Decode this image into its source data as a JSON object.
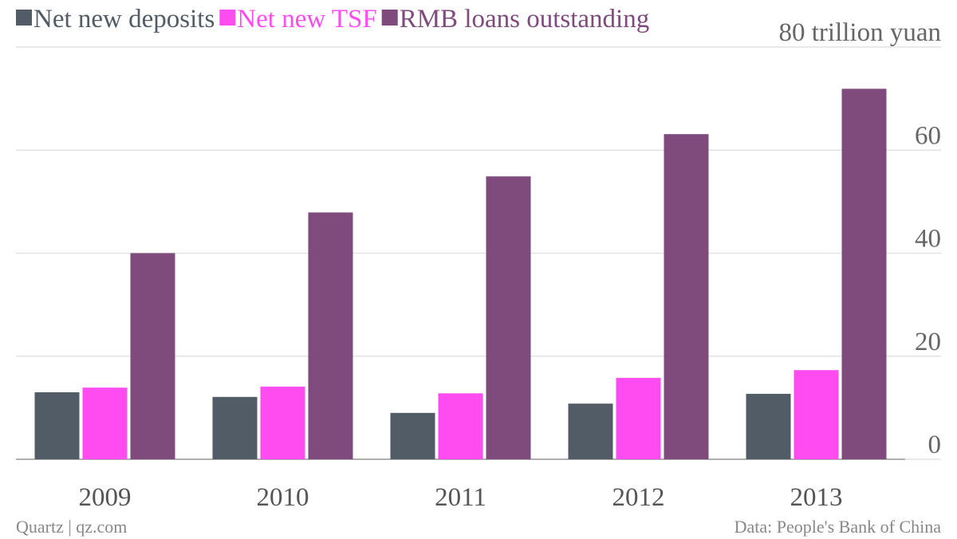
{
  "chart_data": {
    "type": "bar",
    "categories": [
      "2009",
      "2010",
      "2011",
      "2012",
      "2013"
    ],
    "series": [
      {
        "name": "Net new deposits",
        "color": "#525c66",
        "values": [
          13.0,
          12.1,
          9.0,
          10.8,
          12.7
        ]
      },
      {
        "name": "Net new TSF",
        "color": "#ff4cf0",
        "values": [
          13.9,
          14.1,
          12.8,
          15.8,
          17.3
        ]
      },
      {
        "name": "RMB loans outstanding",
        "color": "#7f4a7c",
        "values": [
          40.0,
          47.9,
          54.9,
          63.1,
          71.9
        ]
      }
    ],
    "ylim": [
      0,
      80
    ],
    "yticks": [
      0,
      20,
      40,
      60,
      {
        "value": 80,
        "label": "80 trillion yuan"
      }
    ],
    "grid": true,
    "source": "Data: People's Bank of China",
    "credit": "Quartz | qz.com"
  }
}
